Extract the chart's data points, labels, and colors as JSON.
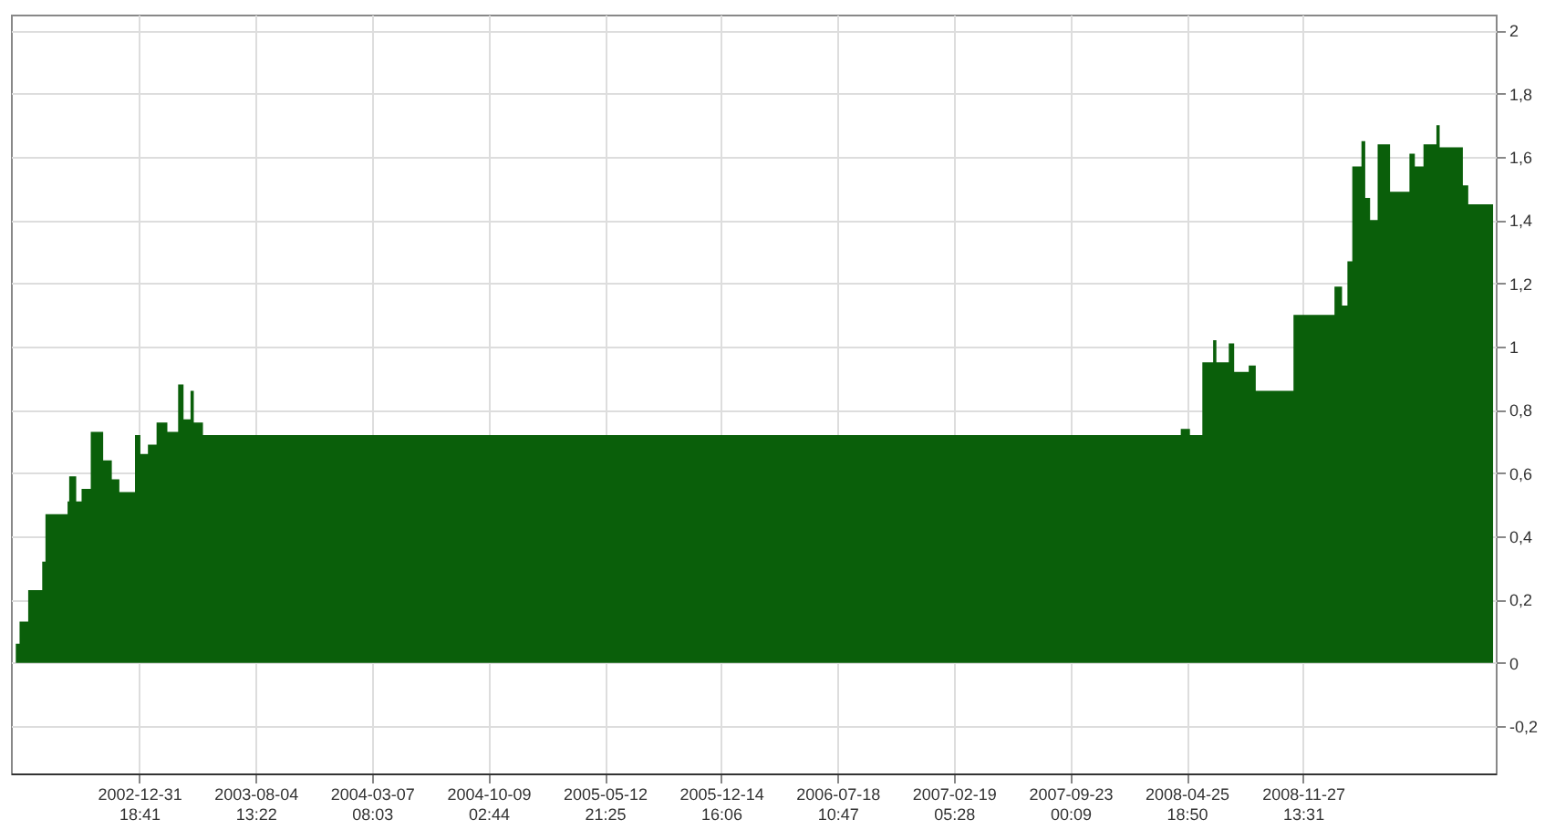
{
  "chart_data": {
    "type": "area",
    "color": "#0a5f0a",
    "x": [
      "2002-05-11",
      "2002-05-17",
      "2002-05-24",
      "2002-06-09",
      "2002-06-26",
      "2002-07-05",
      "2002-07-11",
      "2002-08-14",
      "2002-08-21",
      "2002-08-24",
      "2002-09-06",
      "2002-09-16",
      "2002-10-03",
      "2002-10-16",
      "2002-10-26",
      "2002-11-11",
      "2002-11-25",
      "2002-12-24",
      "2003-01-03",
      "2003-01-17",
      "2003-02-02",
      "2003-02-22",
      "2003-03-14",
      "2003-03-24",
      "2003-04-06",
      "2003-04-12",
      "2003-04-29",
      "2008-04-15",
      "2008-05-02",
      "2008-05-25",
      "2008-06-14",
      "2008-06-20",
      "2008-07-13",
      "2008-07-23",
      "2008-08-19",
      "2008-09-01",
      "2008-10-20",
      "2008-11-10",
      "2009-01-16",
      "2009-01-25",
      "2009-02-08",
      "2009-02-18",
      "2009-02-27",
      "2009-03-13",
      "2009-03-16",
      "2009-03-23",
      "2009-04-01",
      "2009-04-15",
      "2009-05-01",
      "2009-05-08",
      "2009-06-03",
      "2009-06-13",
      "2009-06-23",
      "2009-07-09",
      "2009-08-02",
      "2009-08-08",
      "2009-08-25",
      "2009-09-20",
      "2009-09-30",
      "2009-11-15"
    ],
    "values": [
      0,
      0.06,
      0.13,
      0.23,
      0.23,
      0.32,
      0.47,
      0.47,
      0.51,
      0.59,
      0.51,
      0.55,
      0.73,
      0.73,
      0.64,
      0.58,
      0.54,
      0.72,
      0.66,
      0.69,
      0.76,
      0.73,
      0.88,
      0.77,
      0.86,
      0.76,
      0.72,
      0.74,
      0.72,
      0.95,
      1.02,
      0.95,
      1.01,
      0.92,
      0.94,
      0.86,
      0.86,
      1.1,
      1.1,
      1.19,
      1.13,
      1.27,
      1.57,
      1.57,
      1.65,
      1.47,
      1.4,
      1.64,
      1.64,
      1.49,
      1.49,
      1.61,
      1.57,
      1.64,
      1.7,
      1.63,
      1.63,
      1.51,
      1.45,
      1.45
    ],
    "xlim": [
      "2002-05-08",
      "2009-11-20"
    ],
    "xticks": [
      {
        "value": "2002-12-31T18:41",
        "label": "2002-12-31 18:41"
      },
      {
        "value": "2003-08-04T13:22",
        "label": "2003-08-04 13:22"
      },
      {
        "value": "2004-03-07T08:03",
        "label": "2004-03-07 08:03"
      },
      {
        "value": "2004-10-09T02:44",
        "label": "2004-10-09 02:44"
      },
      {
        "value": "2005-05-12T21:25",
        "label": "2005-05-12 21:25"
      },
      {
        "value": "2005-12-14T16:06",
        "label": "2005-12-14 16:06"
      },
      {
        "value": "2006-07-18T10:47",
        "label": "2006-07-18 10:47"
      },
      {
        "value": "2007-02-19T05:28",
        "label": "2007-02-19 05:28"
      },
      {
        "value": "2007-09-23T00:09",
        "label": "2007-09-23 00:09"
      },
      {
        "value": "2008-04-25T18:50",
        "label": "2008-04-25 18:50"
      },
      {
        "value": "2008-11-27T13:31",
        "label": "2008-11-27 13:31"
      }
    ],
    "ylim": [
      -0.35,
      2.05
    ],
    "yticks": [
      {
        "value": -0.2,
        "label": "-0,2"
      },
      {
        "value": 0,
        "label": "0"
      },
      {
        "value": 0.2,
        "label": "0,2"
      },
      {
        "value": 0.4,
        "label": "0,4"
      },
      {
        "value": 0.6,
        "label": "0,6"
      },
      {
        "value": 0.8,
        "label": "0,8"
      },
      {
        "value": 1,
        "label": "1"
      },
      {
        "value": 1.2,
        "label": "1,2"
      },
      {
        "value": 1.4,
        "label": "1,4"
      },
      {
        "value": 1.6,
        "label": "1,6"
      },
      {
        "value": 1.8,
        "label": "1,8"
      },
      {
        "value": 2,
        "label": "2"
      }
    ],
    "grid": true
  }
}
